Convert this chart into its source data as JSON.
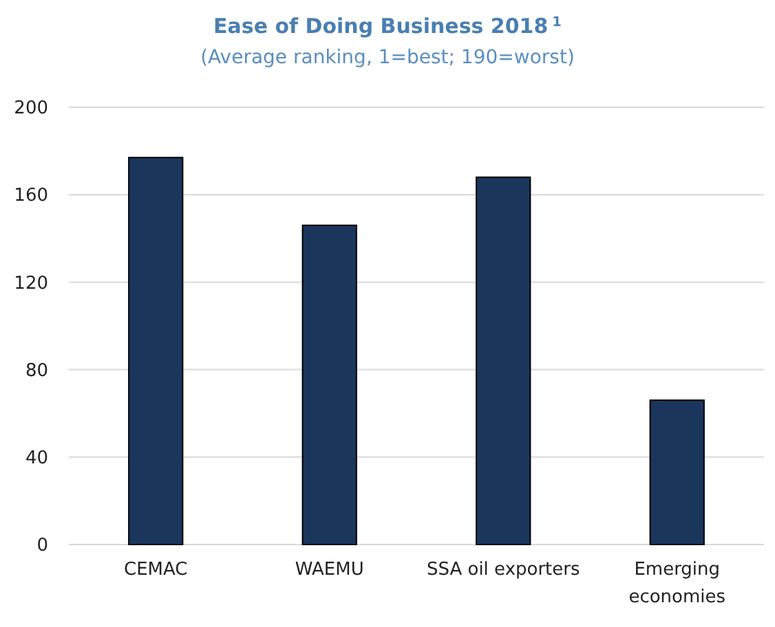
{
  "chart_data": {
    "type": "bar",
    "title": "Ease of Doing Business 2018$^{1}$",
    "subtitle": "(Average ranking, 1=best; 190=worst)",
    "categories": [
      "CEMAC",
      "WAEMU",
      "SSA oil exporters",
      "Emerging economies"
    ],
    "values": [
      177,
      146,
      168,
      66
    ],
    "color": "#1a365d",
    "ylim": [
      0,
      200
    ],
    "yticks": [
      0,
      40,
      80,
      120,
      160,
      200
    ],
    "grid": "y"
  }
}
